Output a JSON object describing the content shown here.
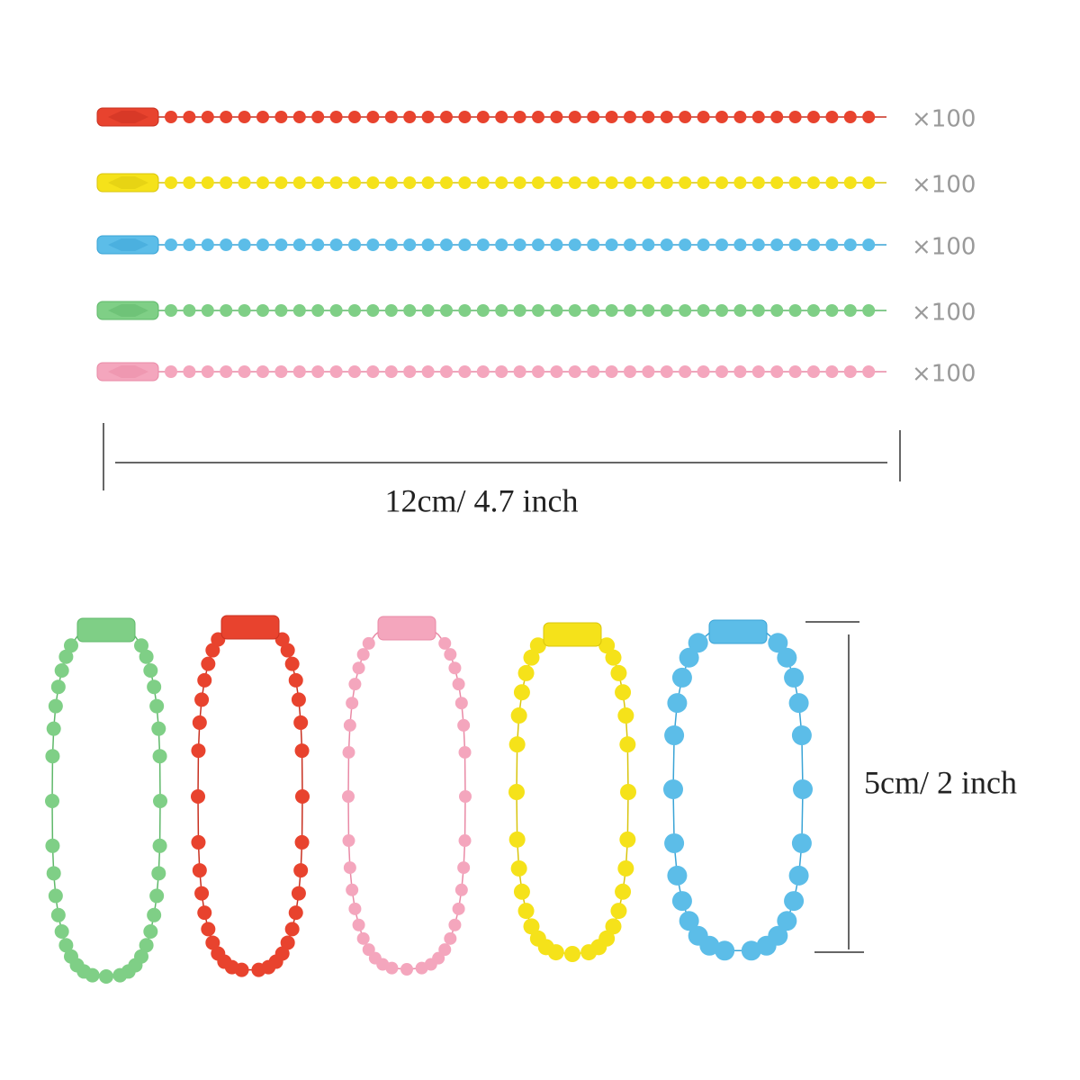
{
  "quantity_labels": [
    "×100",
    "×100",
    "×100",
    "×100",
    "×100"
  ],
  "length_label": "12cm/ 4.7 inch",
  "loop_label": "5cm/ 2 inch"
}
